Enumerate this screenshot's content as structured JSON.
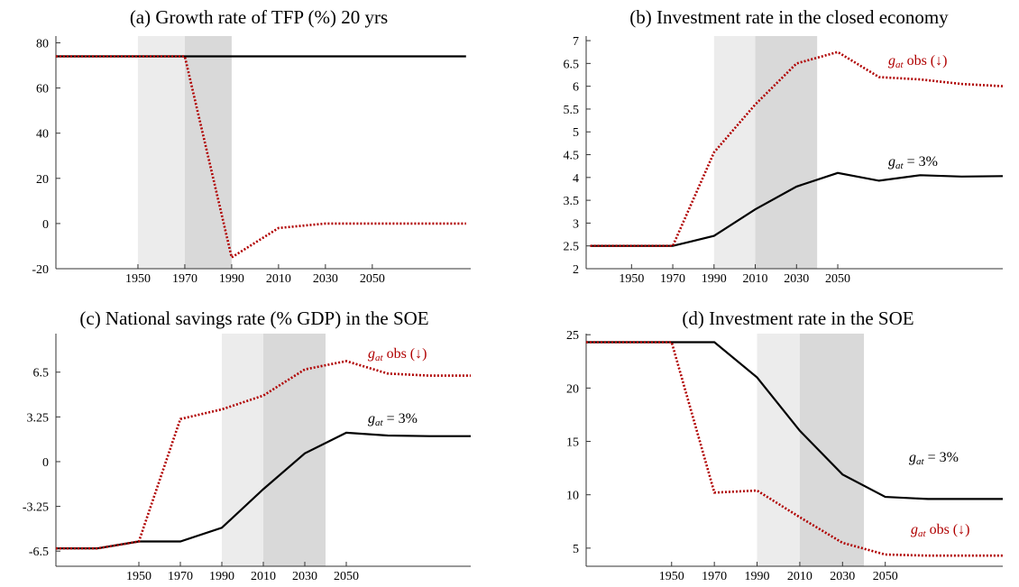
{
  "chart_data": [
    {
      "type": "line",
      "title": "(a) Growth rate of TFP (%) 20 yrs",
      "x": [
        1915,
        1930,
        1950,
        1970,
        1990,
        2010,
        2030,
        2050,
        2070,
        2090
      ],
      "xlim": [
        1915,
        2092
      ],
      "xticks": [
        1950,
        1970,
        1990,
        2010,
        2030,
        2050
      ],
      "ylim": [
        -20,
        83
      ],
      "yticks": [
        -20,
        0,
        20,
        40,
        60,
        80
      ],
      "shading": [
        {
          "from": 1950,
          "to": 1970,
          "color": "#ececec"
        },
        {
          "from": 1970,
          "to": 1990,
          "color": "#d9d9d9"
        }
      ],
      "series": [
        {
          "color": "#000000",
          "style": "solid",
          "values": [
            74,
            74,
            74,
            74,
            74,
            74,
            74,
            74,
            74,
            74
          ]
        },
        {
          "color": "#b00000",
          "style": "dotted",
          "values": [
            74,
            74,
            74,
            74,
            -15,
            -2,
            0,
            0,
            0,
            0
          ]
        }
      ],
      "annotations": []
    },
    {
      "type": "line",
      "title": "(b) Investment rate in the closed economy",
      "x": [
        1930,
        1950,
        1970,
        1990,
        2010,
        2030,
        2050,
        2070,
        2090,
        2110,
        2130
      ],
      "xlim": [
        1928,
        2130
      ],
      "xticks": [
        1950,
        1970,
        1990,
        2010,
        2030,
        2050
      ],
      "ylim": [
        2,
        7.1
      ],
      "yticks": [
        2,
        2.5,
        3,
        3.5,
        4,
        4.5,
        5,
        5.5,
        6,
        6.5,
        7
      ],
      "shading": [
        {
          "from": 1990,
          "to": 2010,
          "color": "#ececec"
        },
        {
          "from": 2010,
          "to": 2040,
          "color": "#d9d9d9"
        }
      ],
      "series": [
        {
          "color": "#000000",
          "style": "solid",
          "values": [
            2.5,
            2.5,
            2.5,
            2.72,
            3.3,
            3.8,
            4.1,
            3.93,
            4.05,
            4.02,
            4.03
          ]
        },
        {
          "color": "#b00000",
          "style": "dotted",
          "values": [
            2.5,
            2.5,
            2.5,
            4.55,
            5.6,
            6.5,
            6.75,
            6.2,
            6.15,
            6.05,
            6.0
          ]
        }
      ],
      "annotations": [
        {
          "base": "g",
          "sub": "at",
          "rest": " obs (↓)",
          "color": "#b00000"
        },
        {
          "base": "g",
          "sub": "at",
          "rest": " = 3%",
          "color": "#000000"
        }
      ]
    },
    {
      "type": "line",
      "title": "(c) National savings rate (% GDP) in the SOE",
      "x": [
        1910,
        1930,
        1950,
        1970,
        1990,
        2010,
        2030,
        2050,
        2070,
        2090,
        2110
      ],
      "xlim": [
        1910,
        2110
      ],
      "xticks": [
        1950,
        1970,
        1990,
        2010,
        2030,
        2050
      ],
      "ylim": [
        -7.6,
        9.3
      ],
      "yticks": [
        -6.5,
        -3.25,
        0,
        3.25,
        6.5
      ],
      "shading": [
        {
          "from": 1990,
          "to": 2010,
          "color": "#ececec"
        },
        {
          "from": 2010,
          "to": 2040,
          "color": "#d9d9d9"
        }
      ],
      "series": [
        {
          "color": "#000000",
          "style": "solid",
          "values": [
            -6.3,
            -6.3,
            -5.8,
            -5.8,
            -4.8,
            -2.0,
            0.6,
            2.1,
            1.9,
            1.85,
            1.85
          ]
        },
        {
          "color": "#b00000",
          "style": "dotted",
          "values": [
            -6.3,
            -6.3,
            -5.8,
            3.1,
            3.8,
            4.8,
            6.7,
            7.3,
            6.4,
            6.25,
            6.25
          ]
        }
      ],
      "annotations": [
        {
          "base": "g",
          "sub": "at",
          "rest": " obs (↓)",
          "color": "#b00000"
        },
        {
          "base": "g",
          "sub": "at",
          "rest": " = 3%",
          "color": "#000000"
        }
      ]
    },
    {
      "type": "line",
      "title": "(d) Investment rate in the SOE",
      "x": [
        1910,
        1930,
        1950,
        1970,
        1990,
        2010,
        2030,
        2050,
        2070,
        2090,
        2105
      ],
      "xlim": [
        1910,
        2105
      ],
      "xticks": [
        1950,
        1970,
        1990,
        2010,
        2030,
        2050
      ],
      "ylim": [
        3.3,
        25.1
      ],
      "yticks": [
        5,
        10,
        15,
        20,
        25
      ],
      "shading": [
        {
          "from": 1990,
          "to": 2010,
          "color": "#ececec"
        },
        {
          "from": 2010,
          "to": 2040,
          "color": "#d9d9d9"
        }
      ],
      "series": [
        {
          "color": "#000000",
          "style": "solid",
          "values": [
            24.3,
            24.3,
            24.3,
            24.3,
            21,
            16,
            11.9,
            9.8,
            9.6,
            9.6,
            9.6
          ]
        },
        {
          "color": "#b00000",
          "style": "dotted",
          "values": [
            24.3,
            24.3,
            24.3,
            10.2,
            10.4,
            7.9,
            5.5,
            4.4,
            4.3,
            4.3,
            4.3
          ]
        }
      ],
      "annotations": [
        {
          "base": "g",
          "sub": "at",
          "rest": " = 3%",
          "color": "#000000"
        },
        {
          "base": "g",
          "sub": "at",
          "rest": " obs (↓)",
          "color": "#b00000"
        }
      ]
    }
  ]
}
